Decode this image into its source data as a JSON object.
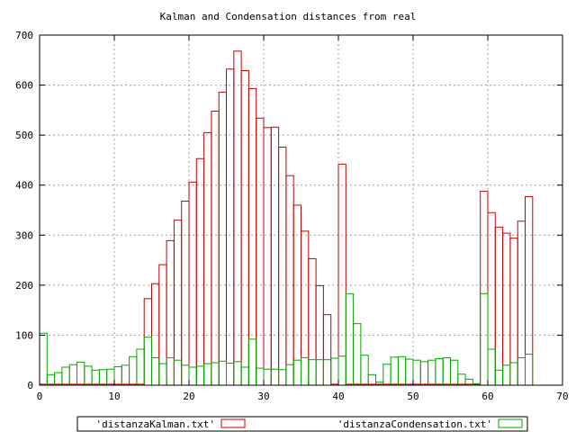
{
  "chart_data": {
    "type": "bar",
    "title": "Kalman and Condensation distances from real",
    "xlabel": "",
    "ylabel": "",
    "xlim": [
      0,
      70
    ],
    "ylim": [
      0,
      700
    ],
    "xticks": [
      0,
      10,
      20,
      30,
      40,
      50,
      60,
      70
    ],
    "yticks": [
      0,
      100,
      200,
      300,
      400,
      500,
      600,
      700
    ],
    "grid": true,
    "legend_position": "bottom",
    "x": [
      0,
      1,
      2,
      3,
      4,
      5,
      6,
      7,
      8,
      9,
      10,
      11,
      12,
      13,
      14,
      15,
      16,
      17,
      18,
      19,
      20,
      21,
      22,
      23,
      24,
      25,
      26,
      27,
      28,
      29,
      30,
      31,
      32,
      33,
      34,
      35,
      36,
      37,
      38,
      39,
      40,
      41,
      42,
      43,
      44,
      45,
      46,
      47,
      48,
      49,
      50,
      51,
      52,
      53,
      54,
      55,
      56,
      57,
      58,
      59,
      60,
      61,
      62,
      63,
      64,
      65
    ],
    "series": [
      {
        "name": "'distanzaKalman.txt'",
        "color": "#cc0000",
        "values": [
          2,
          2,
          2,
          2,
          2,
          2,
          2,
          2,
          2,
          2,
          2,
          2,
          2,
          2,
          173,
          203,
          241,
          289,
          330,
          368,
          406,
          453,
          505,
          548,
          586,
          632,
          668,
          629,
          593,
          534,
          515,
          516,
          476,
          419,
          360,
          308,
          253,
          199,
          141,
          2,
          442,
          2,
          2,
          2,
          2,
          2,
          2,
          2,
          2,
          2,
          2,
          2,
          2,
          2,
          2,
          2,
          2,
          2,
          2,
          388,
          345,
          316,
          304,
          294,
          328,
          377
        ]
      },
      {
        "name": "'distanzaCondensation.txt'",
        "color": "#00aa00",
        "values": [
          104,
          21,
          25,
          36,
          41,
          46,
          38,
          30,
          31,
          32,
          37,
          40,
          57,
          72,
          96,
          55,
          43,
          55,
          50,
          40,
          36,
          38,
          43,
          45,
          48,
          44,
          47,
          36,
          92,
          34,
          32,
          32,
          31,
          41,
          50,
          55,
          51,
          51,
          51,
          54,
          58,
          183,
          123,
          60,
          21,
          6,
          42,
          56,
          57,
          52,
          50,
          47,
          50,
          53,
          55,
          50,
          22,
          12,
          3,
          183,
          72,
          30,
          40,
          45,
          55,
          62
        ]
      }
    ]
  }
}
